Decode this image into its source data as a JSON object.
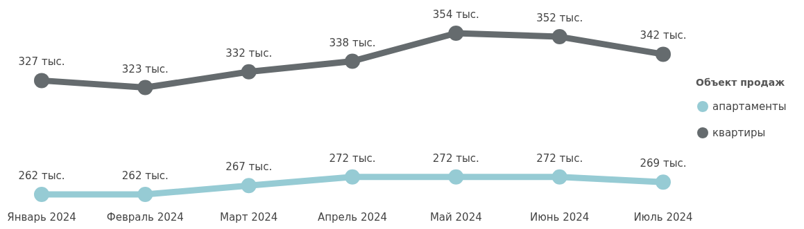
{
  "chart_data": {
    "type": "line",
    "categories": [
      "Январь 2024",
      "Февраль 2024",
      "Март 2024",
      "Апрель 2024",
      "Май 2024",
      "Июнь 2024",
      "Июль 2024"
    ],
    "series": [
      {
        "name": "апартаменты",
        "color": "#96cbd4",
        "values": [
          262,
          262,
          267,
          272,
          272,
          272,
          269
        ],
        "value_labels": [
          "262 тыс.",
          "262 тыс.",
          "267 тыс.",
          "272 тыс.",
          "272 тыс.",
          "272 тыс.",
          "269 тыс."
        ]
      },
      {
        "name": "квартиры",
        "color": "#656b6e",
        "values": [
          327,
          323,
          332,
          338,
          354,
          352,
          342
        ],
        "value_labels": [
          "327 тыс.",
          "323 тыс.",
          "332 тыс.",
          "338 тыс.",
          "354 тыс.",
          "352 тыс.",
          "342 тыс."
        ]
      }
    ],
    "legend_title": "Объект продаж",
    "legend": "right",
    "marker": "circle",
    "line_style": "solid",
    "grid": false
  }
}
